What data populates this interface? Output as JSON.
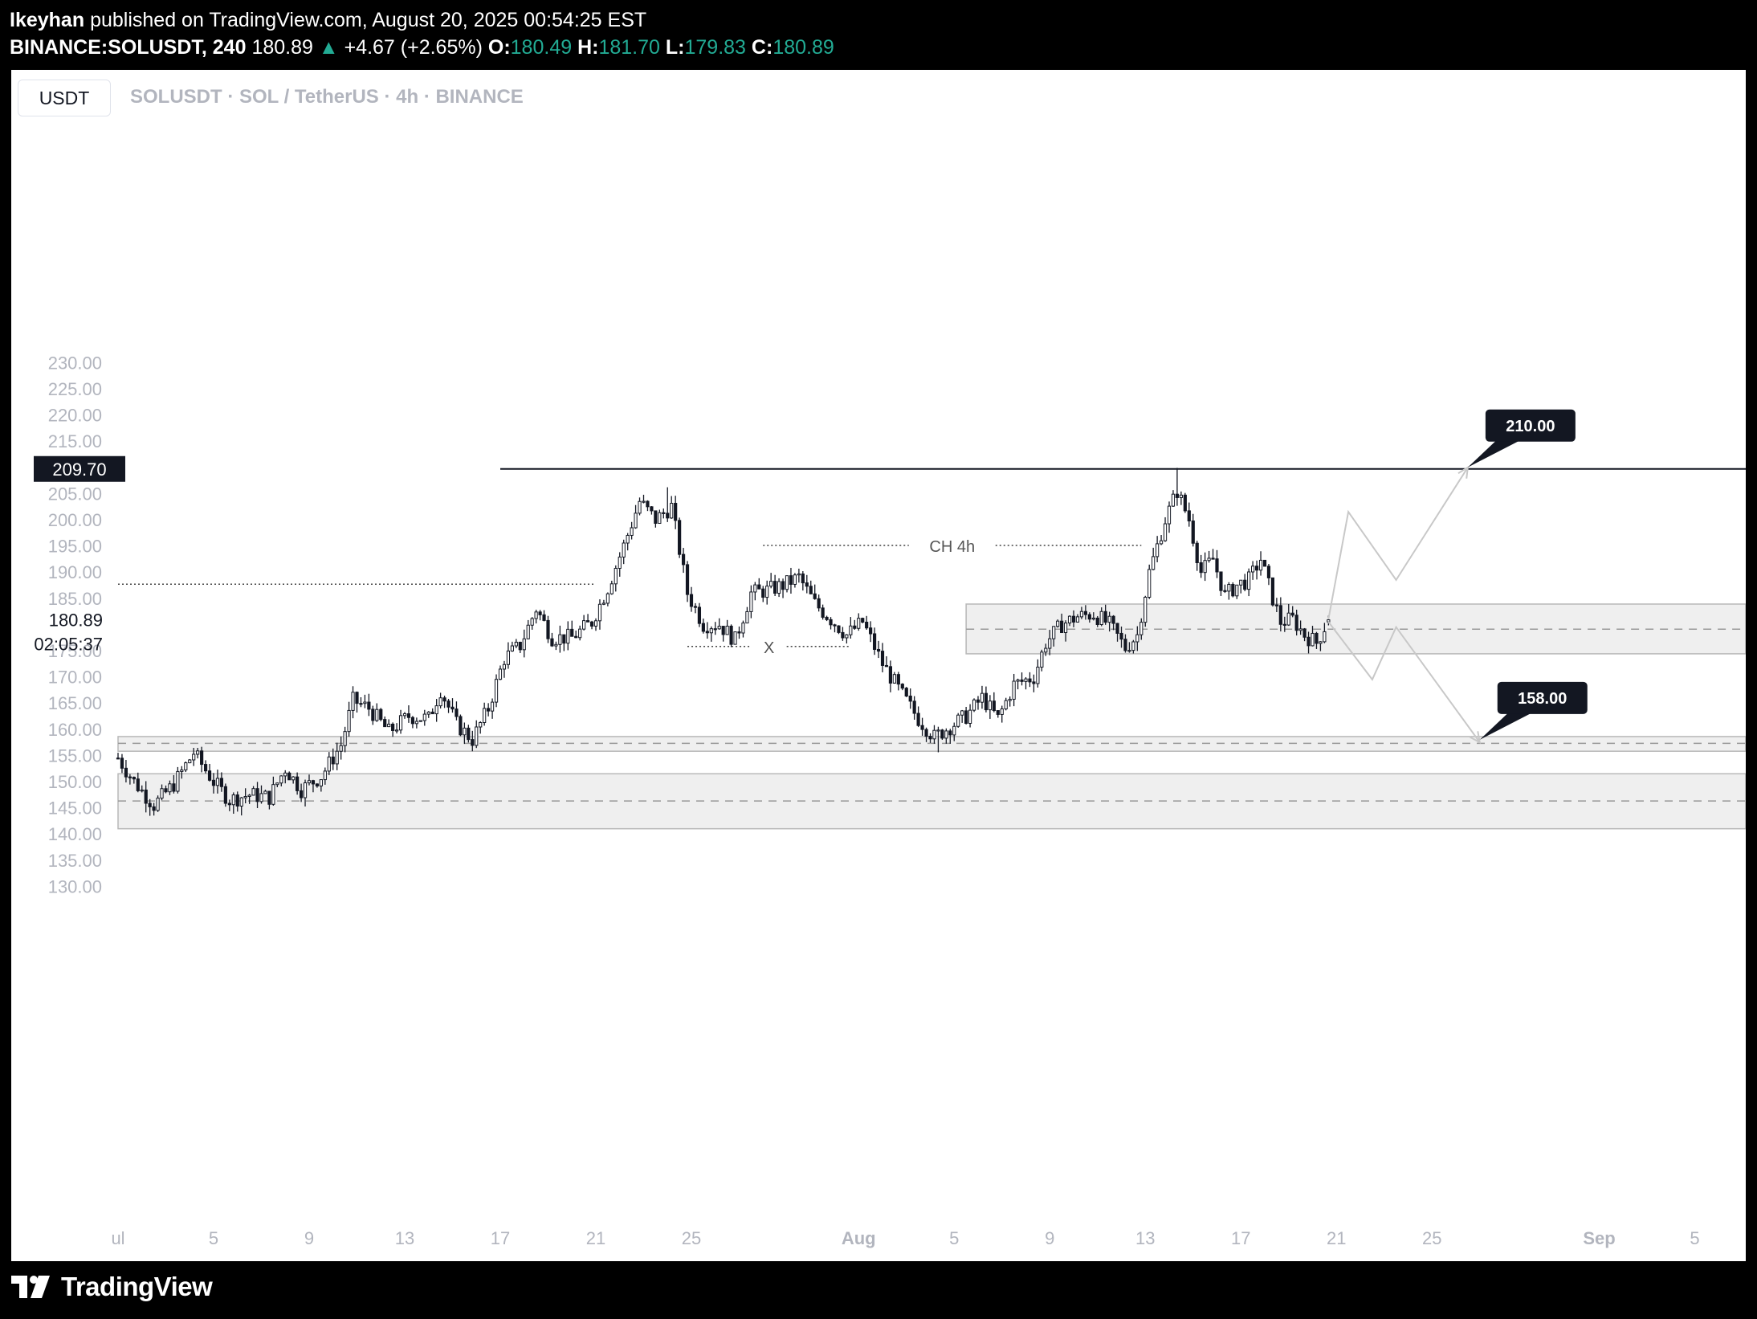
{
  "header": {
    "publisher": "Ikeyhan",
    "published_text": "published on TradingView.com, August 20, 2025 00:54:25 EST",
    "symbol": "BINANCE:SOLUSDT, 240",
    "last": "180.89",
    "arrow": "▲",
    "change": "+4.67 (+2.65%)",
    "open_label": "O:",
    "open": "180.49",
    "high_label": "H:",
    "high": "181.70",
    "low_label": "L:",
    "low": "179.83",
    "close_label": "C:",
    "close": "180.89"
  },
  "toolbar": {
    "currency": "USDT"
  },
  "legend": {
    "text": "SOLUSDT · SOL / TetherUS · 4h · BINANCE"
  },
  "price_scale": {
    "current_price": "180.89",
    "countdown": "02:05:37",
    "marker_label": "209.70"
  },
  "footer": {
    "logo_text": "TradingView"
  },
  "colors": {
    "up": "#22ab94",
    "grid_text": "#b2b5be",
    "zone_fill": "#efefef",
    "zone_border": "#b8b8b8",
    "candle": "#131722"
  },
  "chart_data": {
    "type": "candlestick",
    "interval": "4h",
    "ylim": [
      127.5,
      232.5
    ],
    "y_ticks": [
      230,
      225,
      220,
      215,
      205,
      200,
      195,
      190,
      185,
      175,
      170,
      165,
      160,
      155,
      150,
      145,
      140,
      135,
      130
    ],
    "y_tick_labels": [
      "230.00",
      "225.00",
      "220.00",
      "215.00",
      "205.00",
      "200.00",
      "195.00",
      "190.00",
      "185.00",
      "175.00",
      "170.00",
      "165.00",
      "160.00",
      "155.00",
      "150.00",
      "145.00",
      "140.00",
      "135.00",
      "130.00"
    ],
    "x_range": [
      "2025-07-01",
      "2025-09-06"
    ],
    "x_ticks": [
      {
        "date": "2025-07-01",
        "label": "ul"
      },
      {
        "date": "2025-07-05",
        "label": "5"
      },
      {
        "date": "2025-07-09",
        "label": "9"
      },
      {
        "date": "2025-07-13",
        "label": "13"
      },
      {
        "date": "2025-07-17",
        "label": "17"
      },
      {
        "date": "2025-07-21",
        "label": "21"
      },
      {
        "date": "2025-07-25",
        "label": "25"
      },
      {
        "date": "2025-08-01",
        "label": "Aug"
      },
      {
        "date": "2025-08-05",
        "label": "5"
      },
      {
        "date": "2025-08-09",
        "label": "9"
      },
      {
        "date": "2025-08-13",
        "label": "13"
      },
      {
        "date": "2025-08-17",
        "label": "17"
      },
      {
        "date": "2025-08-21",
        "label": "21"
      },
      {
        "date": "2025-08-25",
        "label": "25"
      },
      {
        "date": "2025-09-01",
        "label": "Sep"
      },
      {
        "date": "2025-09-05",
        "label": "5"
      }
    ],
    "key_points": [
      [
        "2025-07-01T00:00",
        154.5
      ],
      [
        "2025-07-01T16:00",
        150.0
      ],
      [
        "2025-07-02T12:00",
        145.5
      ],
      [
        "2025-07-03T08:00",
        149.5
      ],
      [
        "2025-07-04T04:00",
        155.5
      ],
      [
        "2025-07-05T00:00",
        150.0
      ],
      [
        "2025-07-05T16:00",
        146.5
      ],
      [
        "2025-07-06T12:00",
        147.5
      ],
      [
        "2025-07-07T08:00",
        147.0
      ],
      [
        "2025-07-08T00:00",
        152.5
      ],
      [
        "2025-07-08T16:00",
        148.5
      ],
      [
        "2025-07-09T12:00",
        151.0
      ],
      [
        "2025-07-10T08:00",
        157.0
      ],
      [
        "2025-07-10T20:00",
        165.5
      ],
      [
        "2025-07-11T12:00",
        164.0
      ],
      [
        "2025-07-12T08:00",
        159.5
      ],
      [
        "2025-07-13T04:00",
        162.5
      ],
      [
        "2025-07-14T00:00",
        162.0
      ],
      [
        "2025-07-14T12:00",
        167.5
      ],
      [
        "2025-07-15T04:00",
        161.0
      ],
      [
        "2025-07-15T20:00",
        158.0
      ],
      [
        "2025-07-16T12:00",
        164.0
      ],
      [
        "2025-07-17T04:00",
        173.5
      ],
      [
        "2025-07-17T20:00",
        176.0
      ],
      [
        "2025-07-18T12:00",
        183.0
      ],
      [
        "2025-07-19T04:00",
        177.5
      ],
      [
        "2025-07-20T00:00",
        177.5
      ],
      [
        "2025-07-20T20:00",
        180.5
      ],
      [
        "2025-07-21T12:00",
        187.0
      ],
      [
        "2025-07-22T04:00",
        195.0
      ],
      [
        "2025-07-22T20:00",
        203.5
      ],
      [
        "2025-07-23T12:00",
        200.0
      ],
      [
        "2025-07-24T04:00",
        202.5
      ],
      [
        "2025-07-24T20:00",
        186.0
      ],
      [
        "2025-07-25T12:00",
        180.0
      ],
      [
        "2025-07-26T04:00",
        180.0
      ],
      [
        "2025-07-26T20:00",
        177.0
      ],
      [
        "2025-07-27T12:00",
        186.0
      ],
      [
        "2025-07-28T04:00",
        186.5
      ],
      [
        "2025-07-28T20:00",
        187.5
      ],
      [
        "2025-07-29T12:00",
        189.0
      ],
      [
        "2025-07-30T04:00",
        184.0
      ],
      [
        "2025-07-30T20:00",
        181.0
      ],
      [
        "2025-07-31T12:00",
        178.0
      ],
      [
        "2025-08-01T04:00",
        180.5
      ],
      [
        "2025-08-02T00:00",
        172.5
      ],
      [
        "2025-08-02T20:00",
        166.5
      ],
      [
        "2025-08-03T12:00",
        162.0
      ],
      [
        "2025-08-04T04:00",
        158.5
      ],
      [
        "2025-08-04T20:00",
        160.5
      ],
      [
        "2025-08-05T12:00",
        162.5
      ],
      [
        "2025-08-06T04:00",
        166.0
      ],
      [
        "2025-08-06T20:00",
        162.0
      ],
      [
        "2025-08-07T12:00",
        168.5
      ],
      [
        "2025-08-08T08:00",
        170.0
      ],
      [
        "2025-08-08T20:00",
        176.5
      ],
      [
        "2025-08-09T12:00",
        180.0
      ],
      [
        "2025-08-10T04:00",
        181.5
      ],
      [
        "2025-08-10T20:00",
        182.0
      ],
      [
        "2025-08-11T12:00",
        180.0
      ],
      [
        "2025-08-12T04:00",
        175.5
      ],
      [
        "2025-08-12T16:00",
        178.0
      ],
      [
        "2025-08-13T04:00",
        190.0
      ],
      [
        "2025-08-13T20:00",
        200.0
      ],
      [
        "2025-08-14T08:00",
        205.5
      ],
      [
        "2025-08-14T20:00",
        200.0
      ],
      [
        "2025-08-15T08:00",
        190.0
      ],
      [
        "2025-08-15T20:00",
        192.5
      ],
      [
        "2025-08-16T08:00",
        185.5
      ],
      [
        "2025-08-16T20:00",
        187.5
      ],
      [
        "2025-08-17T08:00",
        188.5
      ],
      [
        "2025-08-17T20:00",
        192.5
      ],
      [
        "2025-08-18T08:00",
        185.0
      ],
      [
        "2025-08-18T16:00",
        180.5
      ],
      [
        "2025-08-19T04:00",
        181.0
      ],
      [
        "2025-08-19T16:00",
        178.0
      ],
      [
        "2025-08-20T04:00",
        176.5
      ],
      [
        "2025-08-20T16:00",
        180.9
      ]
    ],
    "extremes": [
      {
        "date": "2025-07-24T00:00",
        "high": 206.2
      },
      {
        "date": "2025-08-14T08:00",
        "high": 209.9
      },
      {
        "date": "2025-08-04T08:00",
        "low": 155.6
      }
    ],
    "horizontal_lines": [
      {
        "price": 209.7,
        "from": "2025-07-17T00:00",
        "to": "2025-09-06T00:00",
        "style": "solid"
      }
    ],
    "dotted_levels": [
      {
        "price": 187.7,
        "from": "2025-07-01T00:00",
        "to": "2025-07-21T00:00",
        "label": ""
      },
      {
        "price": 195.1,
        "from": "2025-07-28T00:00",
        "to": "2025-08-12T20:00",
        "label": "CH 4h"
      },
      {
        "price": 175.8,
        "from": "2025-07-24T20:00",
        "to": "2025-07-31T16:00",
        "label": "X"
      }
    ],
    "zones": [
      {
        "top": 183.9,
        "bottom": 174.4,
        "mid": 179.1,
        "from": "2025-08-05T12:00"
      },
      {
        "top": 158.6,
        "bottom": 155.8,
        "mid": 157.3,
        "from": "2025-07-01T00:00"
      },
      {
        "top": 151.5,
        "bottom": 141.0,
        "mid": 146.3,
        "from": "2025-07-01T00:00"
      }
    ],
    "projection_up": [
      [
        "2025-08-20T16:00",
        181.0
      ],
      [
        "2025-08-21T12:00",
        201.5
      ],
      [
        "2025-08-23T12:00",
        188.5
      ],
      [
        "2025-08-26T12:00",
        210.0
      ]
    ],
    "projection_down": [
      [
        "2025-08-20T16:00",
        180.5
      ],
      [
        "2025-08-22T12:00",
        169.5
      ],
      [
        "2025-08-23T12:00",
        179.5
      ],
      [
        "2025-08-27T00:00",
        157.5
      ]
    ],
    "targets": [
      {
        "label": "210.00",
        "price": 210.0,
        "date": "2025-08-26T12:00"
      },
      {
        "label": "158.00",
        "price": 158.0,
        "date": "2025-08-27T00:00"
      }
    ]
  }
}
